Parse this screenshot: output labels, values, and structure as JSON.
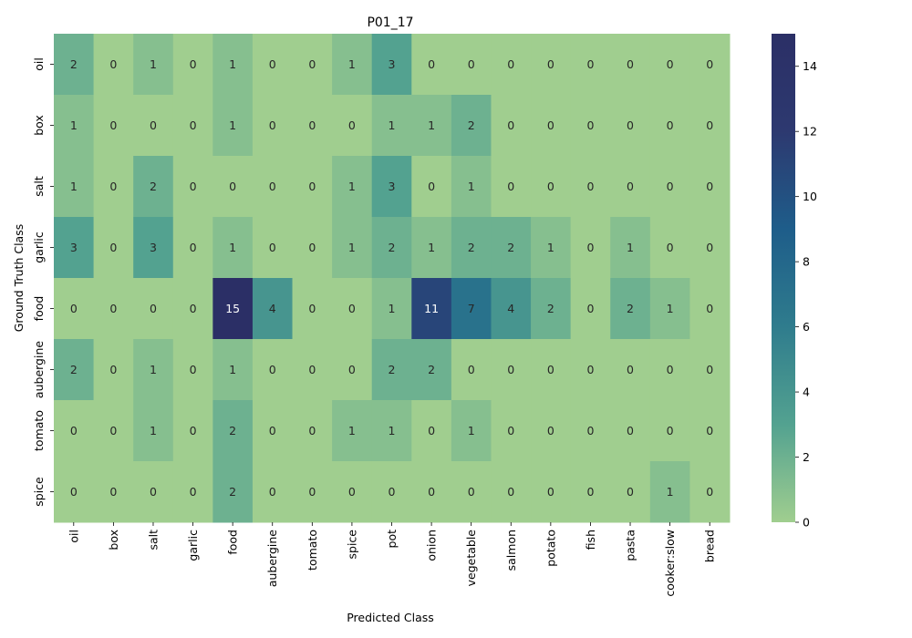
{
  "chart_data": {
    "type": "heatmap",
    "title": "P01_17",
    "xlabel": "Predicted Class",
    "ylabel": "Ground Truth Class",
    "x_categories": [
      "oil",
      "box",
      "salt",
      "garlic",
      "food",
      "aubergine",
      "tomato",
      "spice",
      "pot",
      "onion",
      "vegetable",
      "salmon",
      "potato",
      "fish",
      "pasta",
      "cooker:slow",
      "bread"
    ],
    "y_categories": [
      "oil",
      "box",
      "salt",
      "garlic",
      "food",
      "aubergine",
      "tomato",
      "spice"
    ],
    "values": [
      [
        2,
        0,
        1,
        0,
        1,
        0,
        0,
        1,
        3,
        0,
        0,
        0,
        0,
        0,
        0,
        0,
        0
      ],
      [
        1,
        0,
        0,
        0,
        1,
        0,
        0,
        0,
        1,
        1,
        2,
        0,
        0,
        0,
        0,
        0,
        0
      ],
      [
        1,
        0,
        2,
        0,
        0,
        0,
        0,
        1,
        3,
        0,
        1,
        0,
        0,
        0,
        0,
        0,
        0
      ],
      [
        3,
        0,
        3,
        0,
        1,
        0,
        0,
        1,
        2,
        1,
        2,
        2,
        1,
        0,
        1,
        0,
        0
      ],
      [
        0,
        0,
        0,
        0,
        15,
        4,
        0,
        0,
        1,
        11,
        7,
        4,
        2,
        0,
        2,
        1,
        0
      ],
      [
        2,
        0,
        1,
        0,
        1,
        0,
        0,
        0,
        2,
        2,
        0,
        0,
        0,
        0,
        0,
        0,
        0
      ],
      [
        0,
        0,
        1,
        0,
        2,
        0,
        0,
        1,
        1,
        0,
        1,
        0,
        0,
        0,
        0,
        0,
        0
      ],
      [
        0,
        0,
        0,
        0,
        2,
        0,
        0,
        0,
        0,
        0,
        0,
        0,
        0,
        0,
        0,
        1,
        0
      ]
    ],
    "colorbar": {
      "min": 0,
      "max": 15,
      "ticks": [
        0,
        2,
        4,
        6,
        8,
        10,
        12,
        14
      ]
    },
    "colormap": [
      "#a0ce8f",
      "#53a290",
      "#2f7c8d",
      "#1e5d8a",
      "#2d3970",
      "#2b2f66"
    ]
  }
}
